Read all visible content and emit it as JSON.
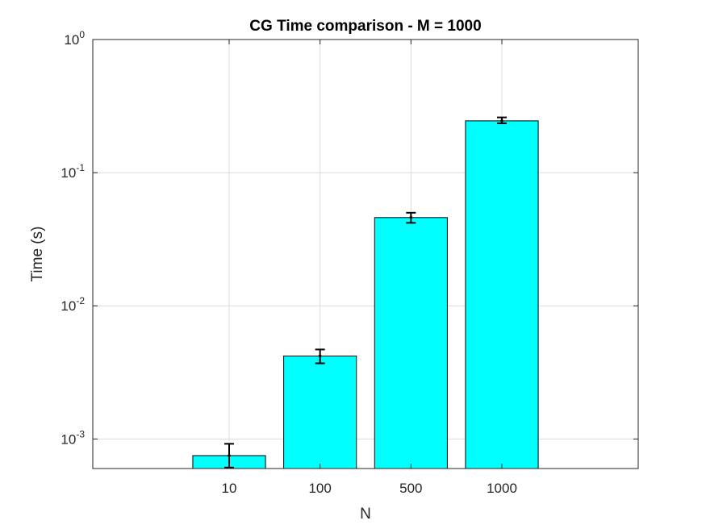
{
  "chart_data": {
    "type": "bar",
    "title": "CG Time comparison - M = 1000",
    "xlabel": "N",
    "ylabel": "Time (s)",
    "categories": [
      "10",
      "100",
      "500",
      "1000"
    ],
    "values": [
      0.00075,
      0.0042,
      0.046,
      0.245
    ],
    "error_low": [
      0.00061,
      0.0037,
      0.042,
      0.235
    ],
    "error_high": [
      0.00092,
      0.0047,
      0.05,
      0.26
    ],
    "y_scale": "log",
    "ylim": [
      0.0006,
      1
    ],
    "y_ticks": [
      {
        "base": "10",
        "exp": "-3",
        "value": 0.001
      },
      {
        "base": "10",
        "exp": "-2",
        "value": 0.01
      },
      {
        "base": "10",
        "exp": "-1",
        "value": 0.1
      },
      {
        "base": "10",
        "exp": "0",
        "value": 1
      }
    ],
    "bar_color": "#00ffff",
    "grid": true,
    "legend": "none"
  }
}
